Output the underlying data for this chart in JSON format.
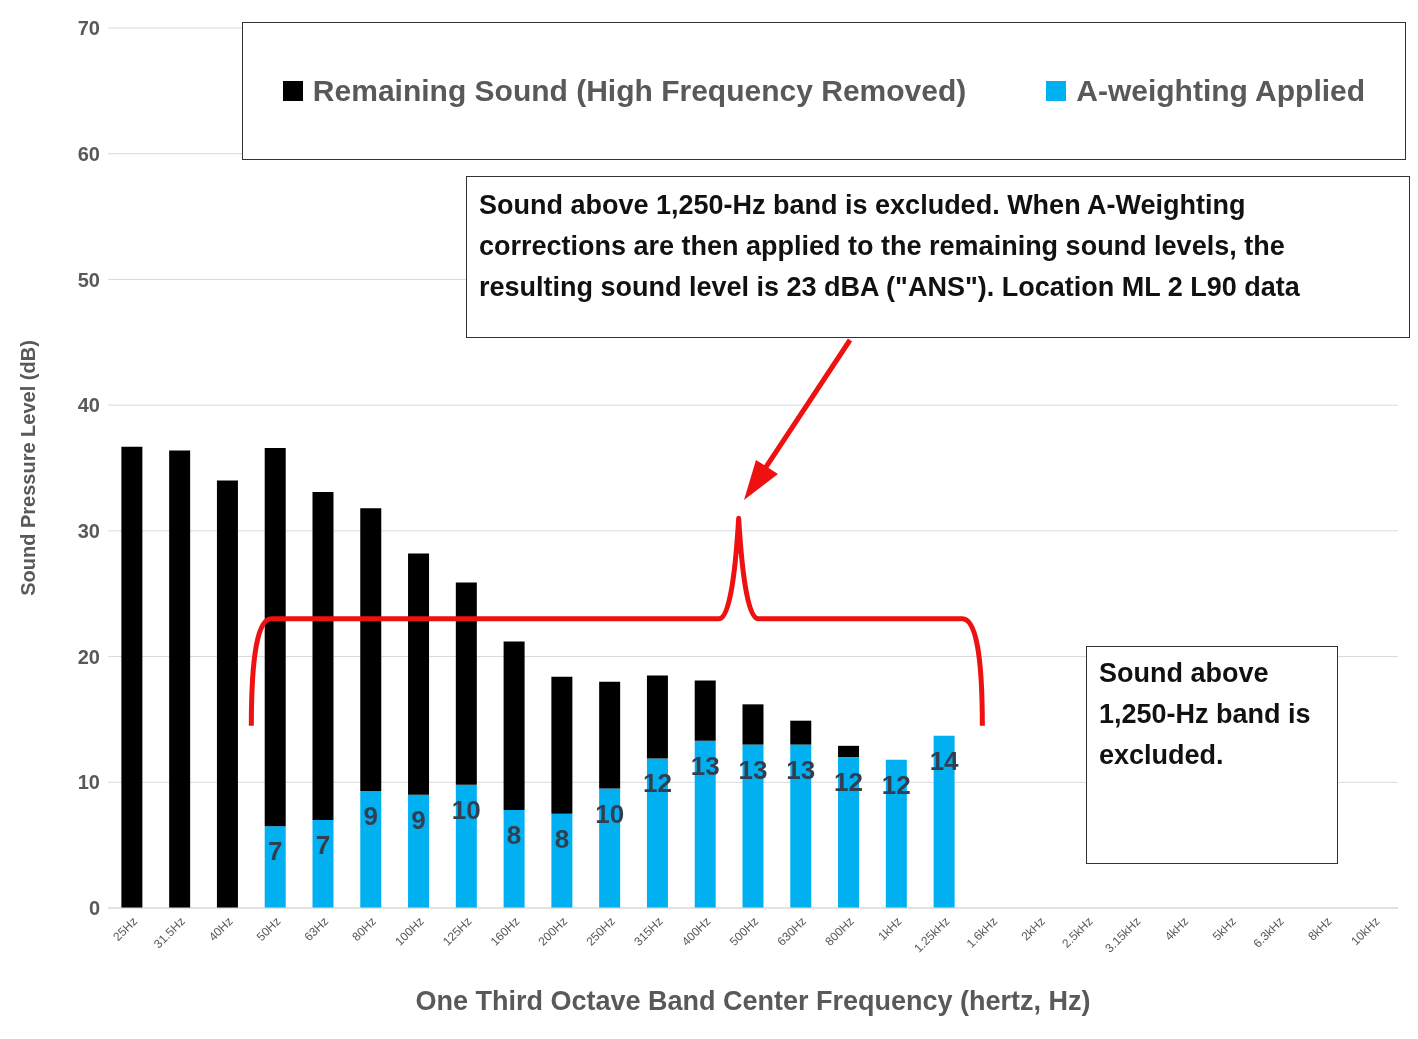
{
  "chart_data": {
    "type": "bar",
    "stacked": true,
    "xlabel": "One Third Octave Band Center Frequency (hertz, Hz)",
    "ylabel": "Sound Pressure Level (dB)",
    "categories": [
      "25Hz",
      "31.5Hz",
      "40Hz",
      "50Hz",
      "63Hz",
      "80Hz",
      "100Hz",
      "125Hz",
      "160Hz",
      "200Hz",
      "250Hz",
      "315Hz",
      "400Hz",
      "500Hz",
      "630Hz",
      "800Hz",
      "1kHz",
      "1.25kHz",
      "1.6kHz",
      "2kHz",
      "2.5kHz",
      "3.15kHz",
      "4kHz",
      "5kHz",
      "6.3kHz",
      "8kHz",
      "10kHz"
    ],
    "series": [
      {
        "name": "A-weighting Applied",
        "color": "#00b0f0",
        "values": [
          null,
          null,
          null,
          6.5,
          7.0,
          9.3,
          9.0,
          9.8,
          7.8,
          7.5,
          9.5,
          11.9,
          13.3,
          13.0,
          13.0,
          12.0,
          11.8,
          13.7,
          null,
          null,
          null,
          null,
          null,
          null,
          null,
          null,
          null
        ],
        "value_labels": [
          null,
          null,
          null,
          "7",
          "7",
          "9",
          "9",
          "10",
          "8",
          "8",
          "10",
          "12",
          "13",
          "13",
          "13",
          "12",
          "12",
          "14",
          null,
          null,
          null,
          null,
          null,
          null,
          null,
          null,
          null
        ]
      },
      {
        "name": "Remaining Sound (High Frequency Removed)",
        "color": "#000000",
        "values": [
          36.7,
          36.4,
          34.0,
          30.1,
          26.1,
          22.5,
          19.2,
          16.1,
          13.4,
          10.9,
          8.5,
          6.6,
          4.8,
          3.2,
          1.9,
          0.9,
          null,
          null,
          null,
          null,
          null,
          null,
          null,
          null,
          null,
          null,
          null
        ]
      }
    ],
    "ylim": [
      0,
      70
    ],
    "yticks": [
      0,
      10,
      20,
      30,
      40,
      50,
      60,
      70
    ],
    "grid": "y",
    "legend": "top",
    "annotations": [
      "Sound above 1,250-Hz band is excluded. When A-Weighting corrections are then applied to the remaining sound levels, the resulting sound level is 23 dBA (\"ANS\"). Location ML 2 L90 data",
      "Sound above 1,250-Hz band is excluded."
    ]
  }
}
